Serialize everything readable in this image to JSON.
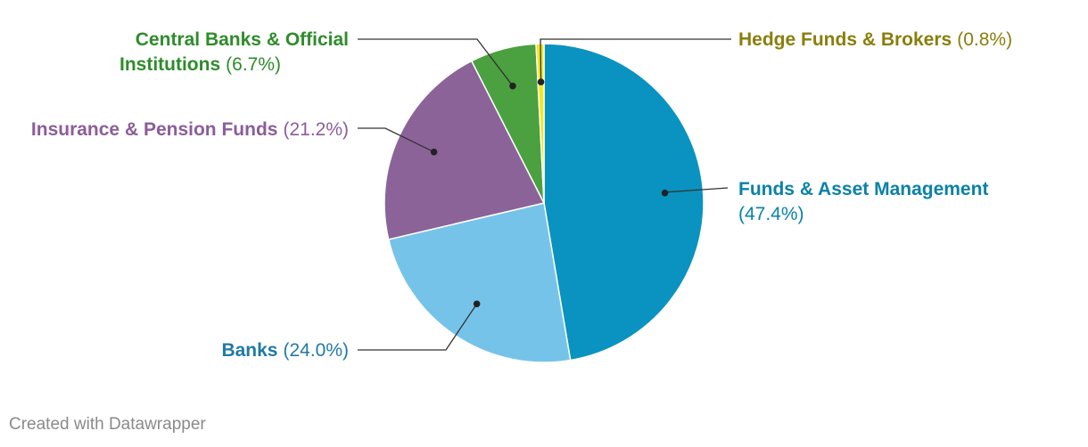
{
  "chart_data": {
    "type": "pie",
    "slices": [
      {
        "name": "Funds & Asset Management",
        "value": 47.4,
        "label": "(47.4%)",
        "color": "#0a93c0"
      },
      {
        "name": "Banks",
        "value": 24.0,
        "label": "(24.0%)",
        "color": "#76c3ea"
      },
      {
        "name": "Insurance & Pension Funds",
        "value": 21.2,
        "label": "(21.2%)",
        "color": "#8b6399"
      },
      {
        "name": "Central Banks & Official Institutions",
        "name_lines": [
          "Central Banks & Official",
          "Institutions"
        ],
        "value": 6.7,
        "label": "(6.7%)",
        "color": "#4ba040"
      },
      {
        "name": "Hedge Funds & Brokers",
        "value": 0.8,
        "label": "(0.8%)",
        "color": "#f3e81c"
      }
    ],
    "label_colors": {
      "Funds & Asset Management": "#0a82a8",
      "Banks": "#1f7aa6",
      "Insurance & Pension Funds": "#8b5d99",
      "Central Banks & Official Institutions": "#2e8c2b",
      "Hedge Funds & Brokers": "#8a7e0c"
    }
  },
  "footer": {
    "credit": "Created with Datawrapper"
  }
}
